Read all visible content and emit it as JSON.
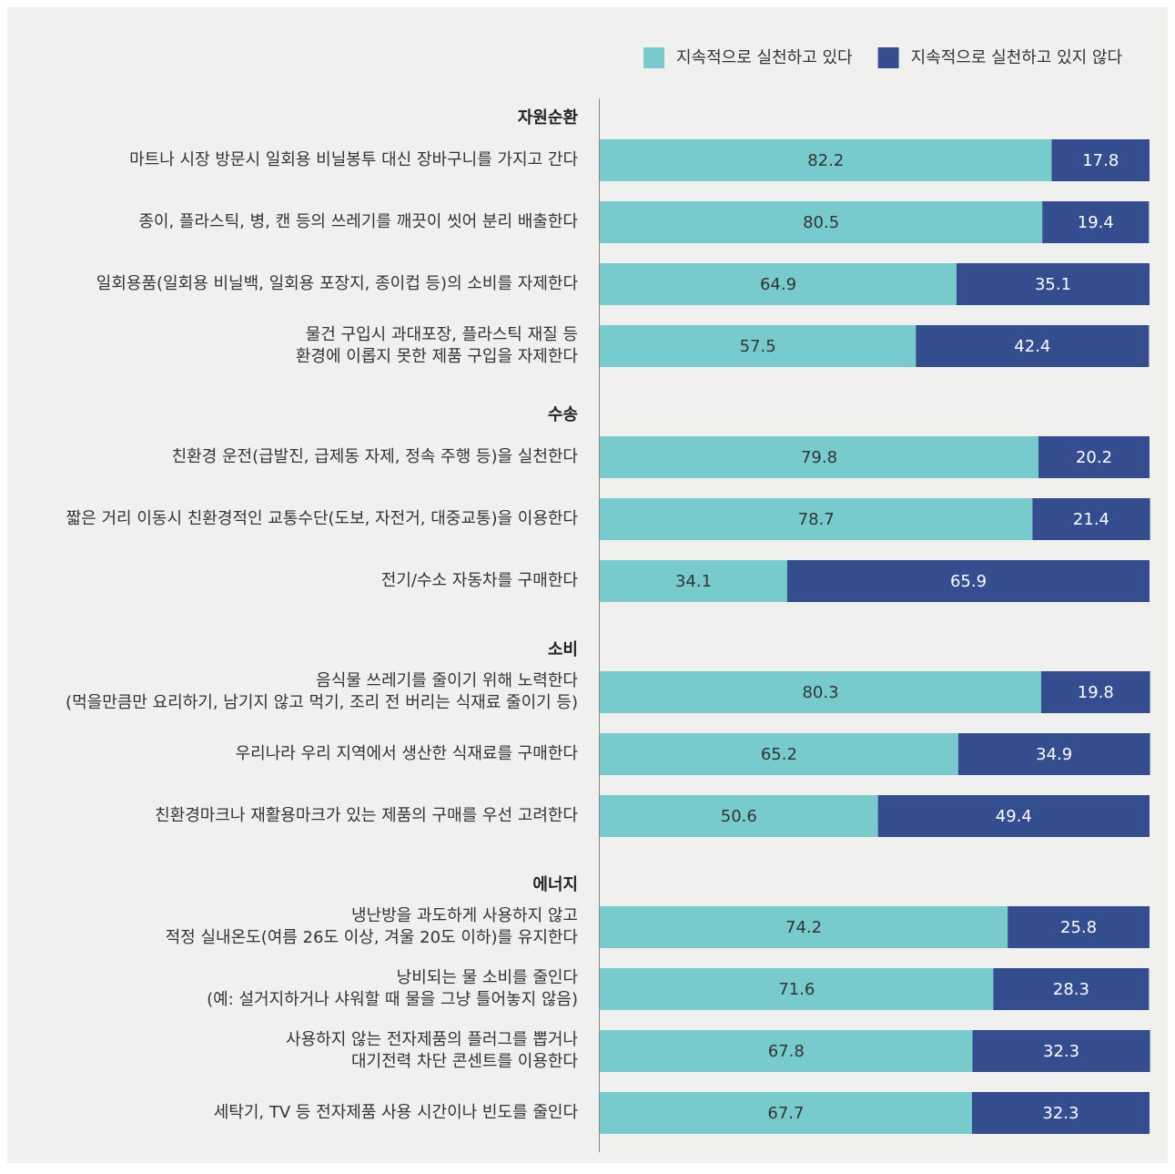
{
  "chart_data": {
    "type": "bar",
    "orientation": "horizontal",
    "stacked": true,
    "xlim": [
      0,
      100
    ],
    "groups": [
      {
        "name": "자원순환",
        "categories": [
          [
            "마트나 시장 방문시 일회용 비닐봉투 대신 장바구니를 가지고 간다"
          ],
          [
            "종이, 플라스틱, 병, 캔 등의 쓰레기를 깨끗이 씻어 분리 배출한다"
          ],
          [
            "일회용품(일회용 비닐백, 일회용 포장지, 종이컵 등)의 소비를 자제한다"
          ],
          [
            "물건 구입시 과대포장, 플라스틱 재질 등",
            "환경에 이롭지 못한 제품 구입을 자제한다"
          ]
        ]
      },
      {
        "name": "수송",
        "categories": [
          [
            "친환경 운전(급발진, 급제동 자제, 정속 주행 등)을 실천한다"
          ],
          [
            "짧은 거리 이동시 친환경적인 교통수단(도보, 자전거, 대중교통)을 이용한다"
          ],
          [
            "전기/수소 자동차를 구매한다"
          ]
        ]
      },
      {
        "name": "소비",
        "categories": [
          [
            "음식물 쓰레기를 줄이기 위해 노력한다",
            "(먹을만큼만 요리하기, 남기지 않고 먹기, 조리 전 버리는 식재료 줄이기 등)"
          ],
          [
            "우리나라 우리 지역에서 생산한 식재료를 구매한다"
          ],
          [
            "친환경마크나 재활용마크가 있는 제품의 구매를 우선 고려한다"
          ]
        ]
      },
      {
        "name": "에너지",
        "categories": [
          [
            "냉난방을 과도하게 사용하지 않고",
            "적정 실내온도(여름 26도 이상, 겨울 20도 이하)를 유지한다"
          ],
          [
            "낭비되는 물 소비를 줄인다",
            "(예: 설거지하거나 샤워할 때 물을 그냥 틀어놓지 않음)"
          ],
          [
            "사용하지 않는 전자제품의 플러그를 뽑거나",
            "대기전력 차단 콘센트를 이용한다"
          ],
          [
            "세탁기, TV 등 전자제품 사용 시간이나 빈도를 줄인다"
          ]
        ]
      }
    ],
    "series": [
      {
        "name": "지속적으로 실천하고 있다",
        "color": "#77cbcd",
        "values": [
          82.2,
          80.5,
          64.9,
          57.5,
          79.8,
          78.7,
          34.1,
          80.3,
          65.2,
          50.6,
          74.2,
          71.6,
          67.8,
          67.7
        ]
      },
      {
        "name": "지속적으로 실천하고 있지 않다",
        "color": "#344d8f",
        "values": [
          17.8,
          19.4,
          35.1,
          42.4,
          20.2,
          21.4,
          65.9,
          19.8,
          34.9,
          49.4,
          25.8,
          28.3,
          32.3,
          32.3
        ]
      }
    ],
    "legend": "top-right"
  }
}
